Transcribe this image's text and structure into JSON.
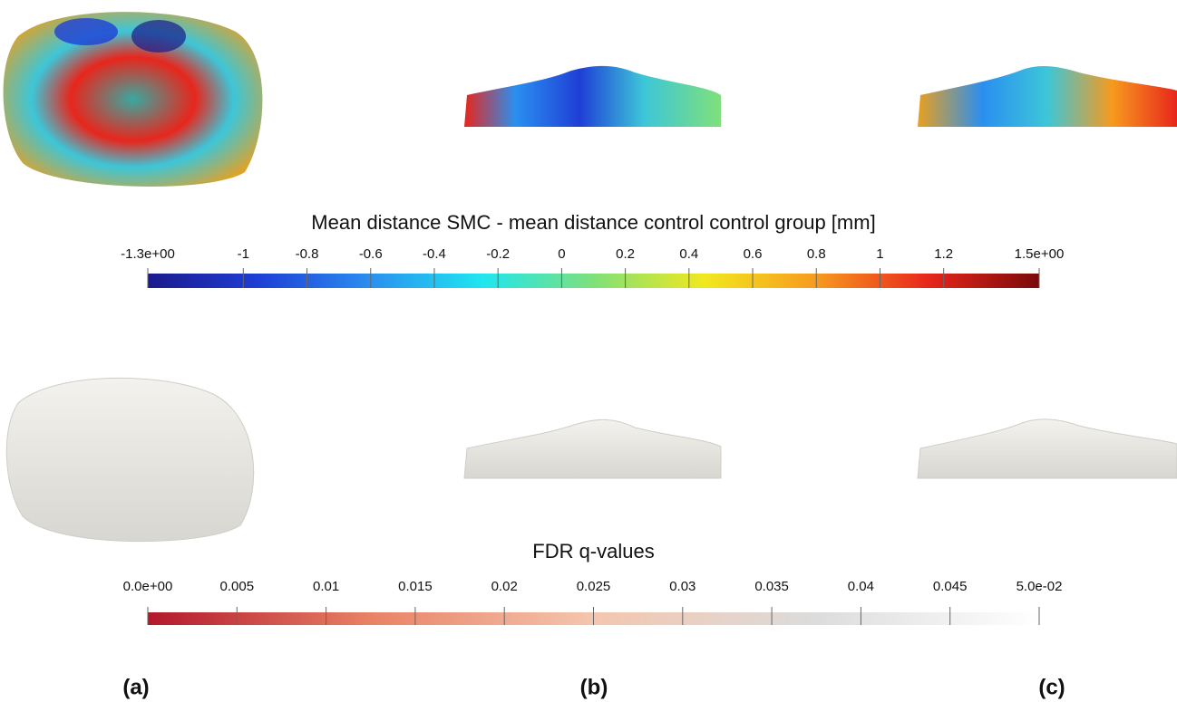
{
  "chart_data": [
    {
      "type": "colorbar",
      "title": "Mean distance SMC - mean distance control control group [mm]",
      "xlim": [
        -1.3,
        1.5
      ],
      "xticks": [
        {
          "value": -1.3,
          "label": "-1.3e+00"
        },
        -1,
        -0.8,
        -0.6,
        -0.4,
        -0.2,
        0,
        0.2,
        0.4,
        0.6,
        0.8,
        1,
        1.2,
        {
          "value": 1.5,
          "label": "1.5e+00"
        }
      ],
      "colors": [
        "#1a1a8c",
        "#1f3fd6",
        "#2a8ff0",
        "#1fe6f0",
        "#7fe07a",
        "#f2e81e",
        "#f79a1e",
        "#e8261c",
        "#7a0a0a"
      ]
    },
    {
      "type": "colorbar",
      "title": "FDR q-values",
      "xlim": [
        0,
        0.05
      ],
      "xticks": [
        {
          "value": 0,
          "label": "0.0e+00"
        },
        0.005,
        0.01,
        0.015,
        0.02,
        0.025,
        0.03,
        0.035,
        0.04,
        0.045,
        {
          "value": 0.05,
          "label": "5.0e-02"
        }
      ],
      "colors": [
        "#b2182b",
        "#e88266",
        "#f4c6ae",
        "#dcdcdc",
        "#ffffff"
      ]
    }
  ],
  "panel_labels": [
    "(a)",
    "(b)",
    "(c)"
  ]
}
